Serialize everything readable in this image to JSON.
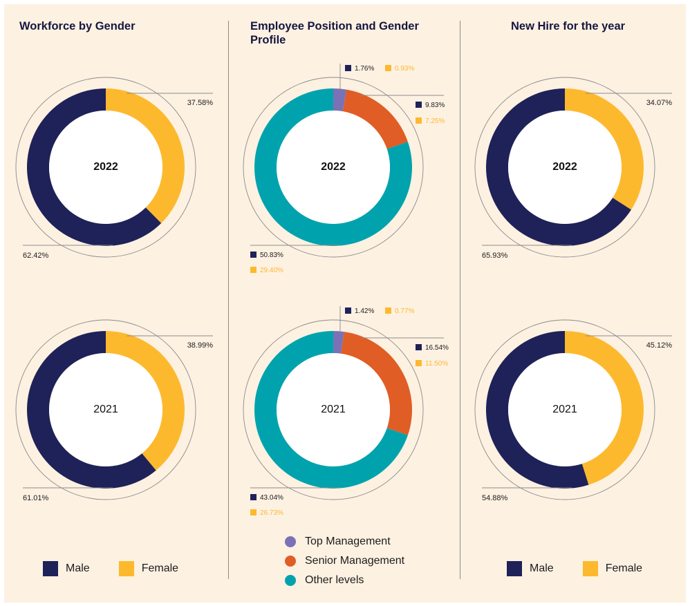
{
  "colors": {
    "male": "#1f2258",
    "female": "#fdb92e",
    "top_management": "#7a72b6",
    "senior_management": "#e05d26",
    "other_levels": "#00a3ad",
    "background": "#fdf1e2",
    "text": "#1c1c1c"
  },
  "panels": [
    {
      "title": "Workforce by Gender"
    },
    {
      "title": "Employee Position and Gender Profile"
    },
    {
      "title": "New Hire for the year"
    }
  ],
  "gender_legend": {
    "male": "Male",
    "female": "Female"
  },
  "position_legend": [
    "Top Management",
    "Senior Management",
    "Other levels"
  ],
  "chart_data": [
    {
      "type": "pie",
      "title": "Workforce by Gender",
      "center_label": "2022",
      "categories": [
        "Male",
        "Female"
      ],
      "values": [
        62.42,
        37.58
      ],
      "labels": [
        "62.42%",
        "37.58%"
      ]
    },
    {
      "type": "pie",
      "title": "Workforce by Gender",
      "center_label": "2021",
      "categories": [
        "Male",
        "Female"
      ],
      "values": [
        61.01,
        38.99
      ],
      "labels": [
        "61.01%",
        "38.99%"
      ]
    },
    {
      "type": "pie",
      "title": "Employee Position and Gender Profile",
      "center_label": "2022",
      "categories": [
        "Top Management",
        "Senior Management",
        "Other levels"
      ],
      "values": [
        2.69,
        17.08,
        80.23
      ],
      "series": [
        {
          "name": "Male",
          "values": [
            1.76,
            9.83,
            50.83
          ]
        },
        {
          "name": "Female",
          "values": [
            0.93,
            7.25,
            29.4
          ]
        }
      ],
      "labels": {
        "top_management": {
          "male": "1.76%",
          "female": "0.93%"
        },
        "senior_management": {
          "male": "9.83%",
          "female": "7.25%"
        },
        "other_levels": {
          "male": "50.83%",
          "female": "29.40%"
        }
      }
    },
    {
      "type": "pie",
      "title": "Employee Position and Gender Profile",
      "center_label": "2021",
      "categories": [
        "Top Management",
        "Senior Management",
        "Other levels"
      ],
      "values": [
        2.19,
        28.04,
        69.77
      ],
      "series": [
        {
          "name": "Male",
          "values": [
            1.42,
            16.54,
            43.04
          ]
        },
        {
          "name": "Female",
          "values": [
            0.77,
            11.5,
            26.73
          ]
        }
      ],
      "labels": {
        "top_management": {
          "male": "1.42%",
          "female": "0.77%"
        },
        "senior_management": {
          "male": "16.54%",
          "female": "11.50%"
        },
        "other_levels": {
          "male": "43.04%",
          "female": "26.73%"
        }
      }
    },
    {
      "type": "pie",
      "title": "New Hire for the year",
      "center_label": "2022",
      "categories": [
        "Male",
        "Female"
      ],
      "values": [
        65.93,
        34.07
      ],
      "labels": [
        "65.93%",
        "34.07%"
      ]
    },
    {
      "type": "pie",
      "title": "New Hire for the year",
      "center_label": "2021",
      "categories": [
        "Male",
        "Female"
      ],
      "values": [
        54.88,
        45.12
      ],
      "labels": [
        "54.88%",
        "45.12%"
      ]
    }
  ]
}
